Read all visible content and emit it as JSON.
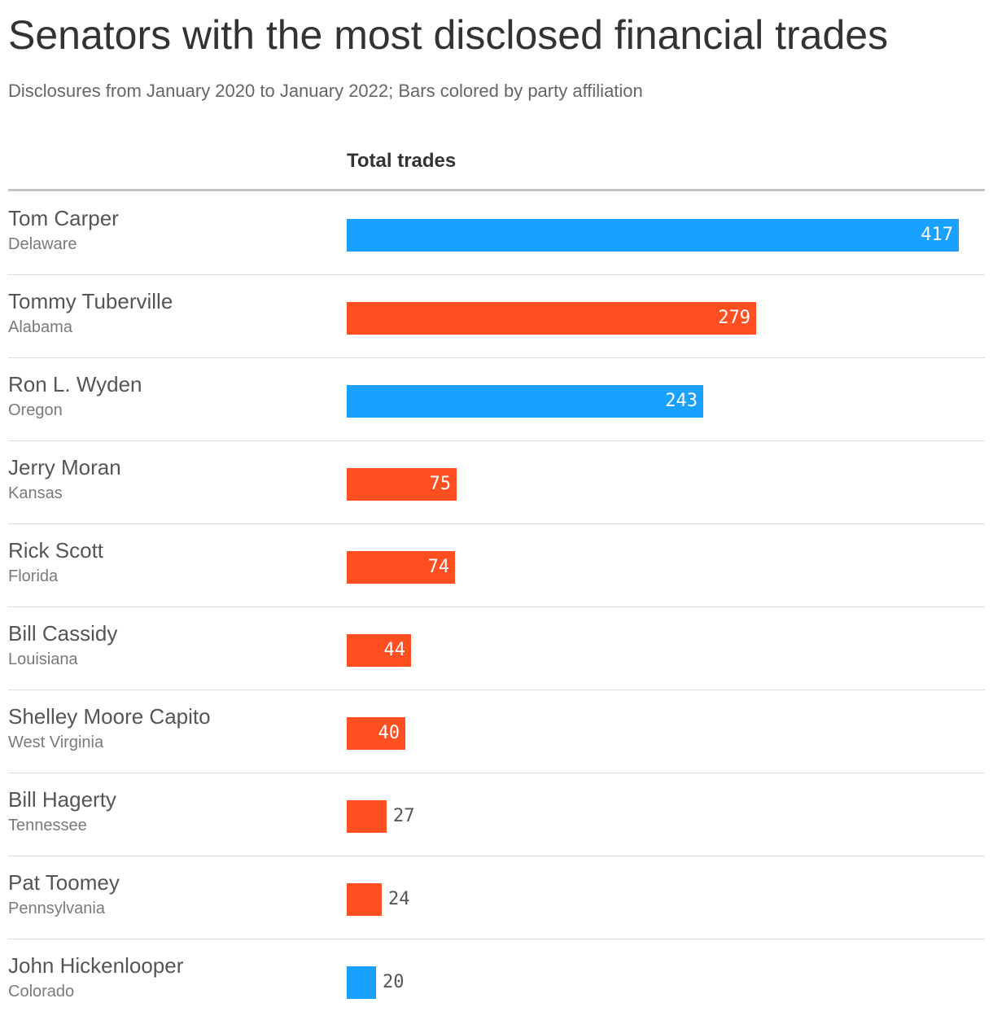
{
  "title": "Senators with the most disclosed financial trades",
  "subtitle": "Disclosures from January 2020 to January 2022; Bars colored by party affiliation",
  "column_header": "Total trades",
  "colors": {
    "democrat": "#18a1ff",
    "republican": "#ff4f20",
    "label_inside": "#ffffff",
    "label_outside": "#555555"
  },
  "chart_data": {
    "type": "bar",
    "orientation": "horizontal",
    "title": "Senators with the most disclosed financial trades",
    "subtitle": "Disclosures from January 2020 to January 2022; Bars colored by party affiliation",
    "value_label": "Total trades",
    "categories": [
      "Tom Carper",
      "Tommy Tuberville",
      "Ron L. Wyden",
      "Jerry Moran",
      "Rick Scott",
      "Bill Cassidy",
      "Shelley Moore Capito",
      "Bill Hagerty",
      "Pat Toomey",
      "John Hickenlooper"
    ],
    "values": [
      417,
      279,
      243,
      75,
      74,
      44,
      40,
      27,
      24,
      20
    ],
    "rows": [
      {
        "name": "Tom Carper",
        "state": "Delaware",
        "value": 417,
        "color": "#18a1ff"
      },
      {
        "name": "Tommy Tuberville",
        "state": "Alabama",
        "value": 279,
        "color": "#ff4f20"
      },
      {
        "name": "Ron L. Wyden",
        "state": "Oregon",
        "value": 243,
        "color": "#18a1ff"
      },
      {
        "name": "Jerry Moran",
        "state": "Kansas",
        "value": 75,
        "color": "#ff4f20"
      },
      {
        "name": "Rick Scott",
        "state": "Florida",
        "value": 74,
        "color": "#ff4f20"
      },
      {
        "name": "Bill Cassidy",
        "state": "Louisiana",
        "value": 44,
        "color": "#ff4f20"
      },
      {
        "name": "Shelley Moore Capito",
        "state": "West Virginia",
        "value": 40,
        "color": "#ff4f20"
      },
      {
        "name": "Bill Hagerty",
        "state": "Tennessee",
        "value": 27,
        "color": "#ff4f20"
      },
      {
        "name": "Pat Toomey",
        "state": "Pennsylvania",
        "value": 24,
        "color": "#ff4f20"
      },
      {
        "name": "John Hickenlooper",
        "state": "Colorado",
        "value": 20,
        "color": "#18a1ff"
      }
    ],
    "xlim": [
      0,
      417
    ],
    "grid": false,
    "legend": "none"
  }
}
